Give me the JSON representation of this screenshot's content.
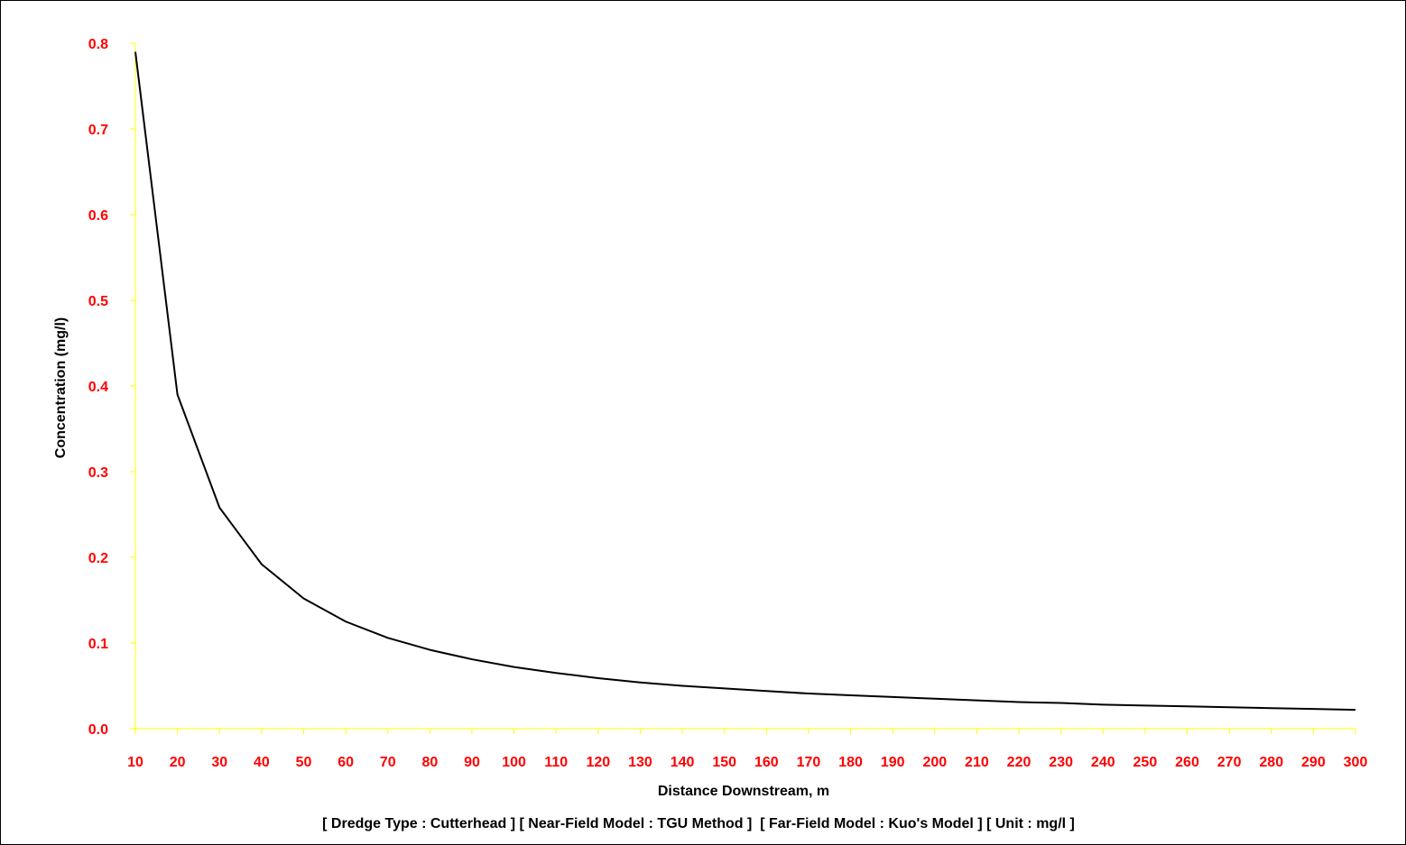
{
  "chart_data": {
    "type": "line",
    "title": "",
    "xlabel": "Distance Downstream, m",
    "ylabel": "Concentration (mg/l)",
    "caption": "[ Dredge Type : Cutterhead ] [ Near-Field Model : TGU Method ]  [ Far-Field Model : Kuo's Model ] [ Unit : mg/l ]",
    "xlim": [
      10,
      300
    ],
    "ylim": [
      0,
      0.8
    ],
    "x_ticks": [
      "10",
      "20",
      "30",
      "40",
      "50",
      "60",
      "70",
      "80",
      "90",
      "100",
      "110",
      "120",
      "130",
      "140",
      "150",
      "160",
      "170",
      "180",
      "190",
      "200",
      "210",
      "220",
      "230",
      "240",
      "250",
      "260",
      "270",
      "280",
      "290",
      "300"
    ],
    "y_ticks": [
      "0.0",
      "0.1",
      "0.2",
      "0.3",
      "0.4",
      "0.5",
      "0.6",
      "0.7",
      "0.8"
    ],
    "grid": false,
    "colors": {
      "line": "#000000",
      "tick_labels": "#ff0000",
      "axis": "#ffff00"
    },
    "series": [
      {
        "x": [
          10,
          20,
          30,
          40,
          50,
          60,
          70,
          80,
          90,
          100,
          110,
          120,
          130,
          140,
          150,
          160,
          170,
          180,
          190,
          200,
          210,
          220,
          230,
          240,
          250,
          260,
          270,
          280,
          290,
          300
        ],
        "values": [
          0.79,
          0.39,
          0.258,
          0.192,
          0.152,
          0.125,
          0.106,
          0.092,
          0.081,
          0.072,
          0.065,
          0.059,
          0.054,
          0.05,
          0.047,
          0.044,
          0.041,
          0.039,
          0.037,
          0.035,
          0.033,
          0.031,
          0.03,
          0.028,
          0.027,
          0.026,
          0.025,
          0.024,
          0.023,
          0.022
        ]
      }
    ]
  }
}
